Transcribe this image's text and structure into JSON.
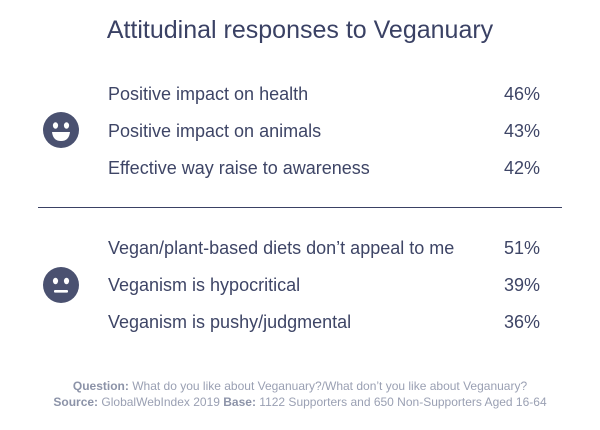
{
  "title": "Attitudinal responses to Veganuary",
  "icons": {
    "positive": "smiley-face-icon",
    "negative": "neutral-face-icon",
    "color": "#4a5170"
  },
  "chart_data": {
    "type": "table",
    "title": "Attitudinal responses to Veganuary",
    "groups": [
      {
        "sentiment": "positive",
        "rows": [
          {
            "label": "Positive impact on health",
            "value": "46%"
          },
          {
            "label": "Positive impact on animals",
            "value": "43%"
          },
          {
            "label": "Effective way raise to awareness",
            "value": "42%"
          }
        ]
      },
      {
        "sentiment": "negative",
        "rows": [
          {
            "label": "Vegan/plant-based diets don’t appeal to me",
            "value": "51%"
          },
          {
            "label": "Veganism is hypocritical",
            "value": "39%"
          },
          {
            "label": "Veganism is pushy/judgmental",
            "value": "36%"
          }
        ]
      }
    ]
  },
  "footer": {
    "question_label": "Question:",
    "question_text": "What do you like about Veganuary?/What don’t you like about Veganuary?",
    "source_label": "Source:",
    "source_text": "GlobalWebIndex 2019",
    "base_label": "Base:",
    "base_text": "1122 Supporters and 650 Non-Supporters Aged 16-64"
  }
}
